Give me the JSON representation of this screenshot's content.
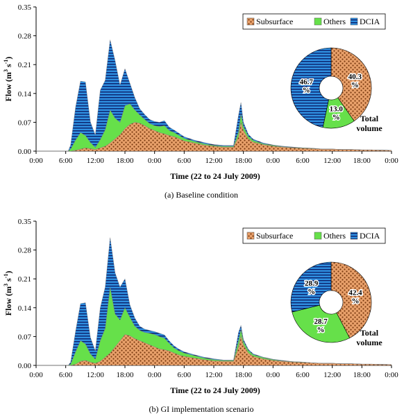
{
  "colors": {
    "subsurface_fill": "#e8a06a",
    "subsurface_dot": "#7a3a10",
    "others": "#66e04a",
    "dcia": "#2f8fe0",
    "dcia_stripe": "#0a1f6a"
  },
  "icons": {
    "legend_subsurface": "dotted-swatch",
    "legend_others": "solid-swatch",
    "legend_dcia": "striped-swatch"
  },
  "chart_data": [
    {
      "type": "area",
      "caption": "(a) Baseline condition",
      "ylabel": "Flow (m³ s⁻¹)",
      "ylabel_base": "Flow (m",
      "ylabel_sup1": "3",
      "ylabel_mid": " s",
      "ylabel_sup2": "-1",
      "ylabel_end": ")",
      "xlabel": "Time (22 to 24 July 2009)",
      "ylim": [
        0,
        0.35
      ],
      "yticks": [
        "0.00",
        "0.07",
        "0.14",
        "0.21",
        "0.28",
        "0.35"
      ],
      "xticks": [
        "0:00",
        "6:00",
        "12:00",
        "18:00",
        "0:00",
        "6:00",
        "12:00",
        "18:00",
        "0:00",
        "6:00",
        "12:00",
        "18:00",
        "0:00"
      ],
      "x_hours": [
        0,
        6.5,
        7,
        8,
        9,
        10,
        11,
        12,
        13,
        14,
        15,
        16,
        17,
        18,
        19,
        20,
        21,
        22,
        23,
        24,
        25,
        26,
        27,
        28,
        29,
        30,
        32,
        34,
        36,
        38,
        40,
        41,
        41.5,
        42,
        43,
        44,
        46,
        48,
        50,
        52,
        54,
        56,
        58,
        60,
        62,
        64,
        66,
        68,
        72
      ],
      "series": [
        {
          "name": "Subsurface",
          "values": [
            0,
            0,
            0,
            0.002,
            0.005,
            0.008,
            0.006,
            0.004,
            0.008,
            0.012,
            0.02,
            0.03,
            0.04,
            0.055,
            0.065,
            0.07,
            0.068,
            0.062,
            0.055,
            0.05,
            0.045,
            0.042,
            0.038,
            0.035,
            0.03,
            0.025,
            0.02,
            0.015,
            0.012,
            0.01,
            0.01,
            0.035,
            0.07,
            0.05,
            0.03,
            0.022,
            0.016,
            0.012,
            0.01,
            0.008,
            0.007,
            0.006,
            0.005,
            0.005,
            0.004,
            0.004,
            0.003,
            0.003,
            0.002
          ]
        },
        {
          "name": "Others",
          "values": [
            0,
            0,
            0.005,
            0.025,
            0.04,
            0.03,
            0.015,
            0.005,
            0.02,
            0.04,
            0.08,
            0.05,
            0.03,
            0.055,
            0.05,
            0.03,
            0.02,
            0.015,
            0.012,
            0.012,
            0.015,
            0.02,
            0.012,
            0.01,
            0.008,
            0.006,
            0.004,
            0.003,
            0.002,
            0.002,
            0.002,
            0.012,
            0.02,
            0.01,
            0.006,
            0.004,
            0.002,
            0.002,
            0.001,
            0.001,
            0.001,
            0.001,
            0,
            0,
            0,
            0,
            0,
            0,
            0
          ]
        },
        {
          "name": "DCIA",
          "values": [
            0,
            0,
            0.01,
            0.08,
            0.125,
            0.13,
            0.05,
            0.03,
            0.12,
            0.12,
            0.17,
            0.14,
            0.09,
            0.09,
            0.05,
            0.03,
            0.015,
            0.012,
            0.01,
            0.01,
            0.01,
            0.012,
            0.008,
            0.006,
            0.005,
            0.004,
            0.003,
            0.003,
            0.002,
            0.002,
            0.002,
            0.04,
            0.028,
            0.01,
            0.005,
            0.003,
            0.002,
            0.001,
            0.001,
            0.001,
            0,
            0,
            0,
            0,
            0,
            0,
            0,
            0,
            0
          ]
        }
      ],
      "legend": [
        "Subsurface",
        "Others",
        "DCIA"
      ],
      "legend_position": "top-right",
      "pie": {
        "title_line1": "Total",
        "title_line2": "volume",
        "slices": [
          {
            "name": "Subsurface",
            "value": 40.3,
            "label_num": "40.3",
            "label_pct": "%"
          },
          {
            "name": "Others",
            "value": 13.0,
            "label_num": "13.0",
            "label_pct": "%"
          },
          {
            "name": "DCIA",
            "value": 46.7,
            "label_num": "46.7",
            "label_pct": "%"
          }
        ]
      }
    },
    {
      "type": "area",
      "caption": "(b) GI implementation scenario",
      "ylabel": "Flow (m³ s⁻¹)",
      "ylabel_base": "Flow (m",
      "ylabel_sup1": "3",
      "ylabel_mid": " s",
      "ylabel_sup2": "-1",
      "ylabel_end": ")",
      "xlabel": "Time (22 to 24 July 2009)",
      "ylim": [
        0,
        0.35
      ],
      "yticks": [
        "0.00",
        "0.07",
        "0.14",
        "0.21",
        "0.28",
        "0.35"
      ],
      "xticks": [
        "0:00",
        "6:00",
        "12:00",
        "18:00",
        "0:00",
        "6:00",
        "12:00",
        "18:00",
        "0:00",
        "6:00",
        "12:00",
        "18:00",
        "0:00"
      ],
      "x_hours": [
        0,
        6.5,
        7,
        8,
        9,
        10,
        11,
        12,
        13,
        14,
        15,
        16,
        17,
        18,
        19,
        20,
        21,
        22,
        23,
        24,
        25,
        26,
        27,
        28,
        29,
        30,
        32,
        34,
        36,
        38,
        40,
        41,
        41.5,
        42,
        43,
        44,
        46,
        48,
        50,
        52,
        54,
        56,
        58,
        60,
        62,
        64,
        66,
        68,
        72
      ],
      "series": [
        {
          "name": "Subsurface",
          "values": [
            0,
            0,
            0,
            0.003,
            0.01,
            0.012,
            0.008,
            0.005,
            0.01,
            0.02,
            0.03,
            0.045,
            0.06,
            0.075,
            0.072,
            0.065,
            0.06,
            0.055,
            0.05,
            0.045,
            0.04,
            0.038,
            0.035,
            0.03,
            0.025,
            0.022,
            0.018,
            0.014,
            0.011,
            0.01,
            0.01,
            0.045,
            0.072,
            0.05,
            0.03,
            0.022,
            0.016,
            0.012,
            0.01,
            0.008,
            0.007,
            0.006,
            0.005,
            0.005,
            0.004,
            0.004,
            0.003,
            0.003,
            0.002
          ]
        },
        {
          "name": "Others",
          "values": [
            0,
            0,
            0.003,
            0.03,
            0.05,
            0.04,
            0.02,
            0.01,
            0.05,
            0.07,
            0.16,
            0.08,
            0.05,
            0.065,
            0.045,
            0.03,
            0.025,
            0.025,
            0.028,
            0.03,
            0.03,
            0.028,
            0.018,
            0.012,
            0.01,
            0.008,
            0.006,
            0.004,
            0.003,
            0.002,
            0.002,
            0.015,
            0.015,
            0.008,
            0.006,
            0.004,
            0.003,
            0.002,
            0.001,
            0.001,
            0.001,
            0,
            0,
            0,
            0,
            0,
            0,
            0,
            0
          ]
        },
        {
          "name": "DCIA",
          "values": [
            0,
            0,
            0.005,
            0.05,
            0.09,
            0.1,
            0.04,
            0.02,
            0.08,
            0.1,
            0.12,
            0.1,
            0.08,
            0.07,
            0.03,
            0.02,
            0.01,
            0.008,
            0.007,
            0.007,
            0.008,
            0.008,
            0.006,
            0.005,
            0.004,
            0.003,
            0.002,
            0.002,
            0.002,
            0.001,
            0.001,
            0.02,
            0.01,
            0.005,
            0.003,
            0.002,
            0.001,
            0.001,
            0.001,
            0,
            0,
            0,
            0,
            0,
            0,
            0,
            0,
            0,
            0
          ]
        }
      ],
      "legend": [
        "Subsurface",
        "Others",
        "DCIA"
      ],
      "legend_position": "top-right",
      "pie": {
        "title_line1": "Total",
        "title_line2": "volume",
        "slices": [
          {
            "name": "Subsurface",
            "value": 42.4,
            "label_num": "42.4",
            "label_pct": "%"
          },
          {
            "name": "Others",
            "value": 28.7,
            "label_num": "28.7",
            "label_pct": "%"
          },
          {
            "name": "DCIA",
            "value": 28.9,
            "label_num": "28.9",
            "label_pct": "%"
          }
        ]
      }
    }
  ]
}
